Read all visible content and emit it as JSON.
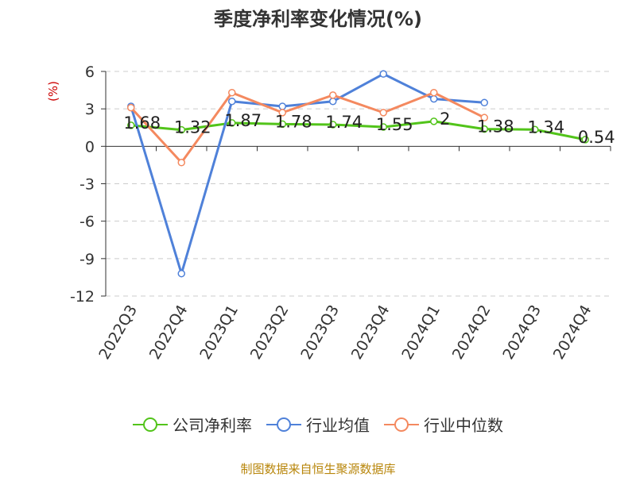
{
  "title": "季度净利率变化情况(%)",
  "y_unit": "(%)",
  "footer": "制图数据来自恒生聚源数据库",
  "colors": {
    "company": "#52c41a",
    "industry_avg": "#4f81d9",
    "industry_median": "#f4895f"
  },
  "chart_data": {
    "type": "line",
    "title": "季度净利率变化情况(%)",
    "ylabel": "(%)",
    "categories": [
      "2022Q3",
      "2022Q4",
      "2023Q1",
      "2023Q2",
      "2023Q3",
      "2023Q4",
      "2024Q1",
      "2024Q2",
      "2024Q3",
      "2024Q4"
    ],
    "ylim": [
      -12,
      6
    ],
    "yticks": [
      6,
      3,
      0,
      -3,
      -6,
      -9,
      -12
    ],
    "grid": true,
    "legend_position": "bottom",
    "series": [
      {
        "name": "公司净利率",
        "color": "#52c41a",
        "values": [
          1.68,
          1.32,
          1.87,
          1.78,
          1.74,
          1.55,
          2,
          1.38,
          1.34,
          0.54
        ],
        "labels": [
          "1.68",
          "1.32",
          "1.87",
          "1.78",
          "1.74",
          "1.55",
          "2",
          "1.38",
          "1.34",
          "0.54"
        ]
      },
      {
        "name": "行业均值",
        "color": "#4f81d9",
        "values": [
          3.2,
          -10.2,
          3.6,
          3.2,
          3.6,
          5.8,
          3.8,
          3.5,
          null,
          null
        ]
      },
      {
        "name": "行业中位数",
        "color": "#f4895f",
        "values": [
          3.1,
          -1.3,
          4.3,
          2.7,
          4.1,
          2.7,
          4.3,
          2.3,
          null,
          null
        ]
      }
    ]
  }
}
